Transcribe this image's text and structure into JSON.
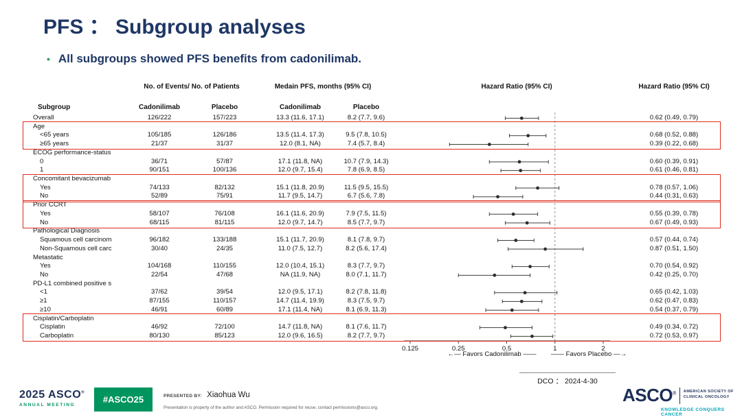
{
  "slide": {
    "title": "PFS ：  Subgroup analyses",
    "bullet_text": "All subgroups showed PFS benefits from cadonilimab.",
    "dco_label": "DCO ： 2024-4-30"
  },
  "table_headers": {
    "events_group": "No. of Events/  No. of Patients",
    "mpfs_group": "Medain PFS,  months (95% CI)",
    "hr_plot": "Hazard Ratio (95% CI)",
    "hr_text": "Hazard Ratio (95% CI)",
    "subgroup": "Subgroup",
    "events_cadonilimab": "Cadonilimab",
    "events_placebo": "Placebo",
    "mpfs_cadonilimab": "Cadonilimab",
    "mpfs_placebo": "Placebo"
  },
  "axis": {
    "tick_labels": [
      "0.125",
      "0.25",
      "0.5",
      "1",
      "2"
    ],
    "favors_left": "←— Favors Cadonilimab ——",
    "favors_right": "—— Favors Placebo —→"
  },
  "footer": {
    "year": "2025",
    "asco": "ASCO",
    "reg": "®",
    "annual_meeting": "ANNUAL MEETING",
    "hashtag": "#ASCO25",
    "presented_by_label": "PRESENTED BY:",
    "presenter": "Xiaohua Wu",
    "disclaimer": "Presentation is property of the author and ASCO. Permission required for reuse; contact permissions@asco.org.",
    "asco_logo": "ASCO",
    "society_line1": "AMERICAN SOCIETY OF",
    "society_line2": "CLINICAL ONCOLOGY",
    "tagline": "KNOWLEDGE CONQUERS CANCER"
  },
  "colors": {
    "navy": "#1f3765",
    "green": "#00945e",
    "teal": "#00a5b8",
    "highlight_red": "#de2a1b"
  },
  "chart_data": {
    "type": "forest",
    "x_scale": "log2",
    "x_ticks": [
      0.125,
      0.25,
      0.5,
      1,
      2
    ],
    "x_range": [
      0.125,
      2
    ],
    "reference_line": 1,
    "title": "Hazard Ratio (95% CI)",
    "rows": [
      {
        "label": "Overall",
        "indent": 0,
        "events_cadonilimab": "126/222",
        "events_placebo": "157/223",
        "mpfs_cadonilimab": "13.3 (11.6, 17.1)",
        "mpfs_placebo": "8.2 (7.7, 9.6)",
        "hr": 0.62,
        "lo": 0.49,
        "hi": 0.79,
        "hr_ci": "0.62 (0.49, 0.79)"
      },
      {
        "label": "Age",
        "indent": 0
      },
      {
        "label": "<65 years",
        "indent": 1,
        "events_cadonilimab": "105/185",
        "events_placebo": "126/186",
        "mpfs_cadonilimab": "13.5 (11.4, 17.3)",
        "mpfs_placebo": "9.5 (7.8, 10.5)",
        "hr": 0.68,
        "lo": 0.52,
        "hi": 0.88,
        "hr_ci": "0.68 (0.52, 0.88)"
      },
      {
        "label": "≥65 years",
        "indent": 1,
        "events_cadonilimab": "21/37",
        "events_placebo": "31/37",
        "mpfs_cadonilimab": "12.0 (8.1, NA)",
        "mpfs_placebo": "7.4 (5.7, 8.4)",
        "hr": 0.39,
        "lo": 0.22,
        "hi": 0.68,
        "hr_ci": "0.39 (0.22, 0.68)"
      },
      {
        "label": "ECOG performance-status",
        "indent": 0
      },
      {
        "label": "0",
        "indent": 1,
        "events_cadonilimab": "36/71",
        "events_placebo": "57/87",
        "mpfs_cadonilimab": "17.1 (11.8, NA)",
        "mpfs_placebo": "10.7 (7.9, 14.3)",
        "hr": 0.6,
        "lo": 0.39,
        "hi": 0.91,
        "hr_ci": "0.60 (0.39, 0.91)"
      },
      {
        "label": "1",
        "indent": 1,
        "events_cadonilimab": "90/151",
        "events_placebo": "100/136",
        "mpfs_cadonilimab": "12.0 (9.7, 15.4)",
        "mpfs_placebo": "7.8 (6.9, 8.5)",
        "hr": 0.61,
        "lo": 0.46,
        "hi": 0.81,
        "hr_ci": "0.61 (0.46, 0.81)"
      },
      {
        "label": "Concomitant bevacizumab",
        "indent": 0
      },
      {
        "label": "Yes",
        "indent": 1,
        "events_cadonilimab": "74/133",
        "events_placebo": "82/132",
        "mpfs_cadonilimab": "15.1 (11.8, 20.9)",
        "mpfs_placebo": "11.5 (9.5, 15.5)",
        "hr": 0.78,
        "lo": 0.57,
        "hi": 1.06,
        "hr_ci": "0.78 (0.57, 1.06)"
      },
      {
        "label": "No",
        "indent": 1,
        "events_cadonilimab": "52/89",
        "events_placebo": "75/91",
        "mpfs_cadonilimab": "11.7 (9.5, 14.7)",
        "mpfs_placebo": "6.7 (5.6, 7.8)",
        "hr": 0.44,
        "lo": 0.31,
        "hi": 0.63,
        "hr_ci": "0.44 (0.31, 0.63)"
      },
      {
        "label": "Prior CCRT",
        "indent": 0
      },
      {
        "label": "Yes",
        "indent": 1,
        "events_cadonilimab": "58/107",
        "events_placebo": "76/108",
        "mpfs_cadonilimab": "16.1 (11.6, 20.9)",
        "mpfs_placebo": "7.9 (7.5, 11.5)",
        "hr": 0.55,
        "lo": 0.39,
        "hi": 0.78,
        "hr_ci": "0.55 (0.39, 0.78)"
      },
      {
        "label": "No",
        "indent": 1,
        "events_cadonilimab": "68/115",
        "events_placebo": "81/115",
        "mpfs_cadonilimab": "12.0 (9.7, 14.7)",
        "mpfs_placebo": "8.5 (7.7, 9.7)",
        "hr": 0.67,
        "lo": 0.49,
        "hi": 0.93,
        "hr_ci": "0.67 (0.49, 0.93)"
      },
      {
        "label": "Pathological Diagnosis",
        "indent": 0
      },
      {
        "label": "Squamous cell carcinom",
        "indent": 1,
        "events_cadonilimab": "96/182",
        "events_placebo": "133/188",
        "mpfs_cadonilimab": "15.1 (11.7, 20.9)",
        "mpfs_placebo": "8.1 (7.8, 9.7)",
        "hr": 0.57,
        "lo": 0.44,
        "hi": 0.74,
        "hr_ci": "0.57 (0.44, 0.74)"
      },
      {
        "label": "Non-Squamous cell carc",
        "indent": 1,
        "events_cadonilimab": "30/40",
        "events_placebo": "24/35",
        "mpfs_cadonilimab": "11.0 (7.5, 12.7)",
        "mpfs_placebo": "8.2 (5.6, 17.4)",
        "hr": 0.87,
        "lo": 0.51,
        "hi": 1.5,
        "hr_ci": "0.87 (0.51, 1.50)"
      },
      {
        "label": "Metastatic",
        "indent": 0
      },
      {
        "label": "Yes",
        "indent": 1,
        "events_cadonilimab": "104/168",
        "events_placebo": "110/155",
        "mpfs_cadonilimab": "12.0 (10.4, 15.1)",
        "mpfs_placebo": "8.3 (7.7, 9.7)",
        "hr": 0.7,
        "lo": 0.54,
        "hi": 0.92,
        "hr_ci": "0.70 (0.54, 0.92)"
      },
      {
        "label": "No",
        "indent": 1,
        "events_cadonilimab": "22/54",
        "events_placebo": "47/68",
        "mpfs_cadonilimab": "NA (11.9, NA)",
        "mpfs_placebo": "8.0 (7.1, 11.7)",
        "hr": 0.42,
        "lo": 0.25,
        "hi": 0.7,
        "hr_ci": "0.42 (0.25, 0.70)"
      },
      {
        "label": "PD-L1 combined positive s",
        "indent": 0
      },
      {
        "label": "<1",
        "indent": 1,
        "events_cadonilimab": "37/62",
        "events_placebo": "39/54",
        "mpfs_cadonilimab": "12.0 (9.5, 17.1)",
        "mpfs_placebo": "8.2 (7.8, 11.8)",
        "hr": 0.65,
        "lo": 0.42,
        "hi": 1.03,
        "hr_ci": "0.65 (0.42, 1.03)"
      },
      {
        "label": "≥1",
        "indent": 1,
        "events_cadonilimab": "87/155",
        "events_placebo": "110/157",
        "mpfs_cadonilimab": "14.7 (11.4, 19.9)",
        "mpfs_placebo": "8.3 (7.5, 9.7)",
        "hr": 0.62,
        "lo": 0.47,
        "hi": 0.83,
        "hr_ci": "0.62 (0.47, 0.83)"
      },
      {
        "label": "≥10",
        "indent": 1,
        "events_cadonilimab": "46/91",
        "events_placebo": "60/89",
        "mpfs_cadonilimab": "17.1 (11.4, NA)",
        "mpfs_placebo": "8.1 (6.9, 11.3)",
        "hr": 0.54,
        "lo": 0.37,
        "hi": 0.79,
        "hr_ci": "0.54 (0.37, 0.79)"
      },
      {
        "label": "Cisplatin/Carboplatin",
        "indent": 0
      },
      {
        "label": "Cisplatin",
        "indent": 1,
        "events_cadonilimab": "46/92",
        "events_placebo": "72/100",
        "mpfs_cadonilimab": "14.7 (11.8, NA)",
        "mpfs_placebo": "8.1 (7.6, 11.7)",
        "hr": 0.49,
        "lo": 0.34,
        "hi": 0.72,
        "hr_ci": "0.49 (0.34, 0.72)"
      },
      {
        "label": "Carboplatin",
        "indent": 1,
        "events_cadonilimab": "80/130",
        "events_placebo": "85/123",
        "mpfs_cadonilimab": "12.0 (9.6, 16.5)",
        "mpfs_placebo": "8.2 (7.7, 9.7)",
        "hr": 0.72,
        "lo": 0.53,
        "hi": 0.97,
        "hr_ci": "0.72 (0.53, 0.97)"
      }
    ],
    "highlight_groups": [
      {
        "from": 1,
        "to": 3
      },
      {
        "from": 7,
        "to": 9
      },
      {
        "from": 10,
        "to": 12
      },
      {
        "from": 23,
        "to": 25
      }
    ]
  }
}
